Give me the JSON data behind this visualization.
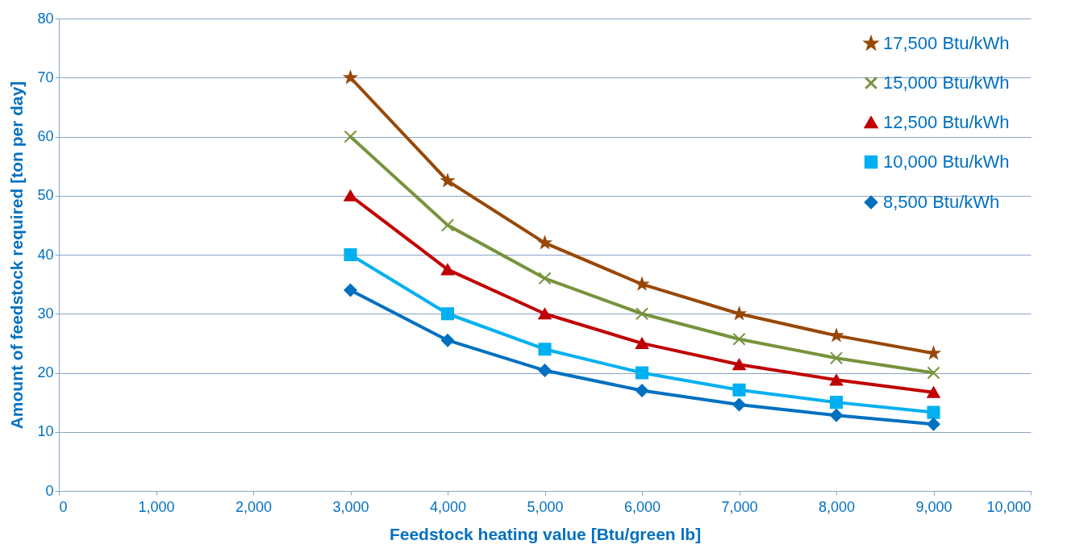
{
  "chart_data": {
    "type": "line",
    "xlabel": "Feedstock heating value [Btu/green lb]",
    "ylabel": "Amount of feedstock required [ton per day]",
    "x": [
      3000,
      4000,
      5000,
      6000,
      7000,
      8000,
      9000
    ],
    "series": [
      {
        "name": "17,500  Btu/kWh",
        "color": "#984807",
        "marker": "star",
        "values": [
          70,
          52.5,
          42,
          35,
          30,
          26.3,
          23.3
        ]
      },
      {
        "name": "15,000  Btu/kWh",
        "color": "#77933c",
        "marker": "cross",
        "values": [
          60,
          45,
          36,
          30,
          25.7,
          22.5,
          20
        ]
      },
      {
        "name": "12,500 Btu/kWh",
        "color": "#c00000",
        "marker": "triangle",
        "values": [
          50,
          37.5,
          30,
          25,
          21.4,
          18.8,
          16.7
        ]
      },
      {
        "name": "10,000 Btu/kWh",
        "color": "#00b0f0",
        "marker": "square",
        "values": [
          40,
          30,
          24,
          20,
          17.1,
          15,
          13.3
        ]
      },
      {
        "name": "8,500 Btu/kWh",
        "color": "#0070c0",
        "marker": "diamond",
        "values": [
          34,
          25.5,
          20.4,
          17,
          14.6,
          12.8,
          11.3
        ]
      }
    ],
    "xlim": [
      0,
      10000
    ],
    "xticks": [
      0,
      {
        "value": 1000,
        "label": "1,000"
      },
      {
        "value": 2000,
        "label": "2,000"
      },
      {
        "value": 3000,
        "label": "3,000"
      },
      {
        "value": 4000,
        "label": "4,000"
      },
      {
        "value": 5000,
        "label": "5,000"
      },
      {
        "value": 6000,
        "label": "6,000"
      },
      {
        "value": 7000,
        "label": "7,000"
      },
      {
        "value": 8000,
        "label": "8,000"
      },
      {
        "value": 9000,
        "label": "9,000"
      },
      {
        "value": 10000,
        "label": "10,000"
      }
    ],
    "ylim": [
      0,
      80
    ],
    "yticks": [
      0,
      10,
      20,
      30,
      40,
      50,
      60,
      70,
      80
    ],
    "grid": "y",
    "legend": "top right",
    "line_style": "solid"
  }
}
